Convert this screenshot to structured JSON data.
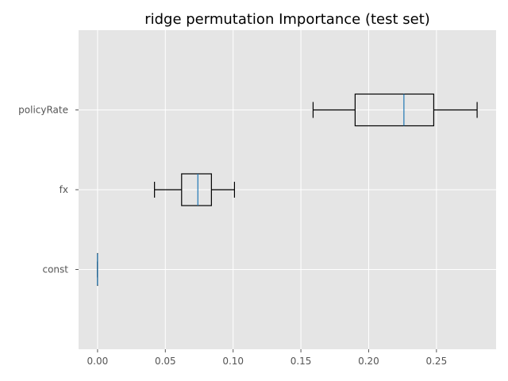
{
  "chart_data": {
    "type": "boxplot",
    "orientation": "horizontal",
    "title": "ridge permutation Importance (test set)",
    "xlabel": "",
    "ylabel": "",
    "xlim": [
      -0.014,
      0.294
    ],
    "xticks": [
      0.0,
      0.05,
      0.1,
      0.15,
      0.2,
      0.25
    ],
    "xtick_labels": [
      "0.00",
      "0.05",
      "0.10",
      "0.15",
      "0.20",
      "0.25"
    ],
    "grid": true,
    "categories": [
      "const",
      "fx",
      "policyRate"
    ],
    "boxes": [
      {
        "category": "const",
        "whisker_low": 0.0,
        "q1": 0.0,
        "median": 0.0,
        "q3": 0.0,
        "whisker_high": 0.0
      },
      {
        "category": "fx",
        "whisker_low": 0.042,
        "q1": 0.062,
        "median": 0.074,
        "q3": 0.084,
        "whisker_high": 0.101
      },
      {
        "category": "policyRate",
        "whisker_low": 0.159,
        "q1": 0.19,
        "median": 0.226,
        "q3": 0.248,
        "whisker_high": 0.28
      }
    ],
    "colors": {
      "background": "#e5e5e5",
      "grid": "#ffffff",
      "box": "#000000",
      "median": "#1f77b4"
    }
  }
}
